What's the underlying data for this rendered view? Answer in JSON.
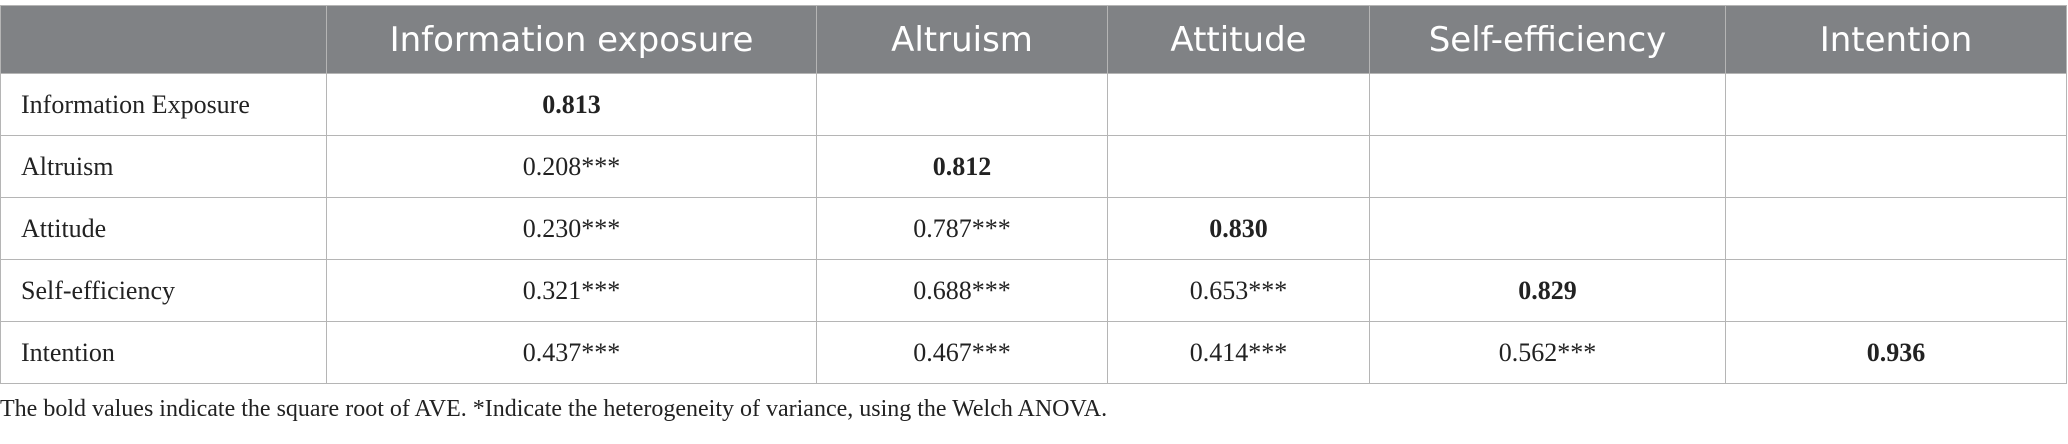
{
  "table": {
    "header": [
      "Information exposure",
      "Altruism",
      "Attitude",
      "Self-efficiency",
      "Intention"
    ],
    "rows": [
      {
        "label": "Information Exposure",
        "cells": [
          "0.813"
        ]
      },
      {
        "label": "Altruism",
        "cells": [
          "0.208***",
          "0.812"
        ]
      },
      {
        "label": "Attitude",
        "cells": [
          "0.230***",
          "0.787***",
          "0.830"
        ]
      },
      {
        "label": "Self-efficiency",
        "cells": [
          "0.321***",
          "0.688***",
          "0.653***",
          "0.829"
        ]
      },
      {
        "label": "Intention",
        "cells": [
          "0.437***",
          "0.467***",
          "0.414***",
          "0.562***",
          "0.936"
        ]
      }
    ],
    "note": "The bold values indicate the square root of AVE. *Indicate the heterogeneity of variance, using the Welch ANOVA."
  }
}
